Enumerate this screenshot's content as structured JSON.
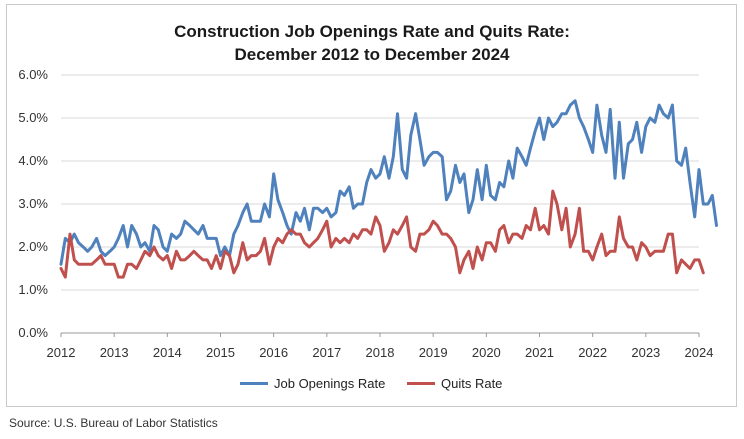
{
  "chart_data": {
    "type": "line",
    "title": "Construction Job Openings Rate and Quits Rate:",
    "subtitle": "December 2012 to December 2024",
    "x_tick_labels": [
      "2012",
      "2013",
      "2014",
      "2015",
      "2016",
      "2017",
      "2018",
      "2019",
      "2020",
      "2021",
      "2022",
      "2023",
      "2024"
    ],
    "x_range": [
      2012,
      2024
    ],
    "y_tick_labels": [
      "0.0%",
      "1.0%",
      "2.0%",
      "3.0%",
      "4.0%",
      "5.0%",
      "6.0%"
    ],
    "ylim": [
      0,
      6
    ],
    "grid": "horizontal",
    "legend_position": "bottom",
    "series": [
      {
        "name": "Job Openings Rate",
        "color": "#4f81bd",
        "points": [
          [
            2012.0,
            1.6
          ],
          [
            2012.08,
            2.2
          ],
          [
            2012.17,
            2.1
          ],
          [
            2012.25,
            2.3
          ],
          [
            2012.33,
            2.1
          ],
          [
            2012.42,
            2.0
          ],
          [
            2012.5,
            1.9
          ],
          [
            2012.58,
            2.0
          ],
          [
            2012.67,
            2.2
          ],
          [
            2012.75,
            1.9
          ],
          [
            2012.83,
            1.8
          ],
          [
            2012.92,
            1.9
          ],
          [
            2013.0,
            2.0
          ],
          [
            2013.08,
            2.2
          ],
          [
            2013.17,
            2.5
          ],
          [
            2013.25,
            2.0
          ],
          [
            2013.33,
            2.5
          ],
          [
            2013.42,
            2.3
          ],
          [
            2013.5,
            2.0
          ],
          [
            2013.58,
            2.1
          ],
          [
            2013.67,
            1.9
          ],
          [
            2013.75,
            2.5
          ],
          [
            2013.83,
            2.4
          ],
          [
            2013.92,
            2.0
          ],
          [
            2014.0,
            1.9
          ],
          [
            2014.08,
            2.3
          ],
          [
            2014.17,
            2.2
          ],
          [
            2014.25,
            2.3
          ],
          [
            2014.33,
            2.6
          ],
          [
            2014.42,
            2.5
          ],
          [
            2014.5,
            2.4
          ],
          [
            2014.58,
            2.3
          ],
          [
            2014.67,
            2.5
          ],
          [
            2014.75,
            2.2
          ],
          [
            2014.83,
            2.2
          ],
          [
            2014.92,
            2.2
          ],
          [
            2015.0,
            1.8
          ],
          [
            2015.08,
            2.0
          ],
          [
            2015.17,
            1.8
          ],
          [
            2015.25,
            2.3
          ],
          [
            2015.33,
            2.5
          ],
          [
            2015.42,
            2.8
          ],
          [
            2015.5,
            3.0
          ],
          [
            2015.58,
            2.6
          ],
          [
            2015.67,
            2.6
          ],
          [
            2015.75,
            2.6
          ],
          [
            2015.83,
            3.0
          ],
          [
            2015.92,
            2.7
          ],
          [
            2016.0,
            3.7
          ],
          [
            2016.08,
            3.1
          ],
          [
            2016.17,
            2.8
          ],
          [
            2016.25,
            2.5
          ],
          [
            2016.33,
            2.3
          ],
          [
            2016.42,
            2.8
          ],
          [
            2016.5,
            2.6
          ],
          [
            2016.58,
            2.9
          ],
          [
            2016.67,
            2.4
          ],
          [
            2016.75,
            2.9
          ],
          [
            2016.83,
            2.9
          ],
          [
            2016.92,
            2.8
          ],
          [
            2017.0,
            2.9
          ],
          [
            2017.08,
            2.7
          ],
          [
            2017.17,
            2.8
          ],
          [
            2017.25,
            3.3
          ],
          [
            2017.33,
            3.2
          ],
          [
            2017.42,
            3.4
          ],
          [
            2017.5,
            2.9
          ],
          [
            2017.58,
            3.0
          ],
          [
            2017.67,
            3.0
          ],
          [
            2017.75,
            3.5
          ],
          [
            2017.83,
            3.8
          ],
          [
            2017.92,
            3.6
          ],
          [
            2018.0,
            3.7
          ],
          [
            2018.08,
            4.1
          ],
          [
            2018.17,
            3.6
          ],
          [
            2018.25,
            4.1
          ],
          [
            2018.33,
            5.1
          ],
          [
            2018.42,
            3.8
          ],
          [
            2018.5,
            3.6
          ],
          [
            2018.58,
            4.6
          ],
          [
            2018.67,
            5.1
          ],
          [
            2018.75,
            4.5
          ],
          [
            2018.83,
            3.9
          ],
          [
            2018.92,
            4.1
          ],
          [
            2019.0,
            4.2
          ],
          [
            2019.08,
            4.2
          ],
          [
            2019.17,
            4.1
          ],
          [
            2019.25,
            3.1
          ],
          [
            2019.33,
            3.3
          ],
          [
            2019.42,
            3.9
          ],
          [
            2019.5,
            3.5
          ],
          [
            2019.58,
            3.7
          ],
          [
            2019.67,
            2.8
          ],
          [
            2019.75,
            3.1
          ],
          [
            2019.83,
            3.8
          ],
          [
            2019.92,
            3.1
          ],
          [
            2020.0,
            3.9
          ],
          [
            2020.08,
            3.2
          ],
          [
            2020.17,
            3.1
          ],
          [
            2020.25,
            3.5
          ],
          [
            2020.33,
            3.4
          ],
          [
            2020.42,
            4.0
          ],
          [
            2020.5,
            3.6
          ],
          [
            2020.58,
            4.3
          ],
          [
            2020.67,
            4.1
          ],
          [
            2020.75,
            3.9
          ],
          [
            2020.83,
            4.3
          ],
          [
            2020.92,
            4.7
          ],
          [
            2021.0,
            5.0
          ],
          [
            2021.08,
            4.5
          ],
          [
            2021.17,
            5.0
          ],
          [
            2021.25,
            4.8
          ],
          [
            2021.33,
            4.9
          ],
          [
            2021.42,
            5.1
          ],
          [
            2021.5,
            5.1
          ],
          [
            2021.58,
            5.3
          ],
          [
            2021.67,
            5.4
          ],
          [
            2021.75,
            5.0
          ],
          [
            2021.83,
            4.8
          ],
          [
            2021.92,
            4.5
          ],
          [
            2022.0,
            4.2
          ],
          [
            2022.08,
            5.3
          ],
          [
            2022.17,
            4.6
          ],
          [
            2022.25,
            4.2
          ],
          [
            2022.33,
            5.2
          ],
          [
            2022.42,
            3.6
          ],
          [
            2022.5,
            4.9
          ],
          [
            2022.58,
            3.6
          ],
          [
            2022.67,
            4.4
          ],
          [
            2022.75,
            4.5
          ],
          [
            2022.83,
            4.9
          ],
          [
            2022.92,
            4.2
          ],
          [
            2023.0,
            4.8
          ],
          [
            2023.08,
            5.0
          ],
          [
            2023.17,
            4.9
          ],
          [
            2023.25,
            5.3
          ],
          [
            2023.33,
            5.1
          ],
          [
            2023.42,
            5.0
          ],
          [
            2023.5,
            5.3
          ],
          [
            2023.58,
            4.0
          ],
          [
            2023.67,
            3.9
          ],
          [
            2023.75,
            4.3
          ],
          [
            2023.83,
            3.5
          ],
          [
            2023.92,
            2.7
          ],
          [
            2024.0,
            3.8
          ],
          [
            2024.08,
            3.0
          ],
          [
            2024.17,
            3.0
          ],
          [
            2024.25,
            3.2
          ],
          [
            2024.33,
            2.5
          ]
        ]
      },
      {
        "name": "Quits Rate",
        "color": "#c0504d",
        "points": [
          [
            2012.0,
            1.5
          ],
          [
            2012.08,
            1.3
          ],
          [
            2012.17,
            2.3
          ],
          [
            2012.25,
            1.7
          ],
          [
            2012.33,
            1.6
          ],
          [
            2012.42,
            1.6
          ],
          [
            2012.5,
            1.6
          ],
          [
            2012.58,
            1.6
          ],
          [
            2012.67,
            1.7
          ],
          [
            2012.75,
            1.8
          ],
          [
            2012.83,
            1.6
          ],
          [
            2012.92,
            1.6
          ],
          [
            2013.0,
            1.6
          ],
          [
            2013.08,
            1.3
          ],
          [
            2013.17,
            1.3
          ],
          [
            2013.25,
            1.6
          ],
          [
            2013.33,
            1.6
          ],
          [
            2013.42,
            1.5
          ],
          [
            2013.5,
            1.7
          ],
          [
            2013.58,
            1.9
          ],
          [
            2013.67,
            1.8
          ],
          [
            2013.75,
            2.0
          ],
          [
            2013.83,
            1.8
          ],
          [
            2013.92,
            1.7
          ],
          [
            2014.0,
            1.8
          ],
          [
            2014.08,
            1.5
          ],
          [
            2014.17,
            1.9
          ],
          [
            2014.25,
            1.7
          ],
          [
            2014.33,
            1.7
          ],
          [
            2014.42,
            1.8
          ],
          [
            2014.5,
            1.9
          ],
          [
            2014.58,
            1.8
          ],
          [
            2014.67,
            1.7
          ],
          [
            2014.75,
            1.7
          ],
          [
            2014.83,
            1.5
          ],
          [
            2014.92,
            1.8
          ],
          [
            2015.0,
            1.5
          ],
          [
            2015.08,
            1.9
          ],
          [
            2015.17,
            1.8
          ],
          [
            2015.25,
            1.4
          ],
          [
            2015.33,
            1.6
          ],
          [
            2015.42,
            2.1
          ],
          [
            2015.5,
            1.7
          ],
          [
            2015.58,
            1.8
          ],
          [
            2015.67,
            1.8
          ],
          [
            2015.75,
            1.9
          ],
          [
            2015.83,
            2.2
          ],
          [
            2015.92,
            1.6
          ],
          [
            2016.0,
            2.0
          ],
          [
            2016.08,
            2.2
          ],
          [
            2016.17,
            2.1
          ],
          [
            2016.25,
            2.3
          ],
          [
            2016.33,
            2.4
          ],
          [
            2016.42,
            2.3
          ],
          [
            2016.5,
            2.3
          ],
          [
            2016.58,
            2.1
          ],
          [
            2016.67,
            2.0
          ],
          [
            2016.75,
            2.1
          ],
          [
            2016.83,
            2.2
          ],
          [
            2016.92,
            2.4
          ],
          [
            2017.0,
            2.6
          ],
          [
            2017.08,
            2.0
          ],
          [
            2017.17,
            2.2
          ],
          [
            2017.25,
            2.1
          ],
          [
            2017.33,
            2.2
          ],
          [
            2017.42,
            2.1
          ],
          [
            2017.5,
            2.3
          ],
          [
            2017.58,
            2.2
          ],
          [
            2017.67,
            2.4
          ],
          [
            2017.75,
            2.4
          ],
          [
            2017.83,
            2.3
          ],
          [
            2017.92,
            2.7
          ],
          [
            2018.0,
            2.5
          ],
          [
            2018.08,
            1.9
          ],
          [
            2018.17,
            2.1
          ],
          [
            2018.25,
            2.4
          ],
          [
            2018.33,
            2.3
          ],
          [
            2018.42,
            2.5
          ],
          [
            2018.5,
            2.7
          ],
          [
            2018.58,
            2.0
          ],
          [
            2018.67,
            1.9
          ],
          [
            2018.75,
            2.3
          ],
          [
            2018.83,
            2.3
          ],
          [
            2018.92,
            2.4
          ],
          [
            2019.0,
            2.6
          ],
          [
            2019.08,
            2.5
          ],
          [
            2019.17,
            2.3
          ],
          [
            2019.25,
            2.3
          ],
          [
            2019.33,
            2.2
          ],
          [
            2019.42,
            2.0
          ],
          [
            2019.5,
            1.4
          ],
          [
            2019.58,
            1.7
          ],
          [
            2019.67,
            1.9
          ],
          [
            2019.75,
            1.5
          ],
          [
            2019.83,
            2.0
          ],
          [
            2019.92,
            1.7
          ],
          [
            2020.0,
            2.1
          ],
          [
            2020.08,
            2.1
          ],
          [
            2020.17,
            1.9
          ],
          [
            2020.25,
            2.4
          ],
          [
            2020.33,
            2.5
          ],
          [
            2020.42,
            2.1
          ],
          [
            2020.5,
            2.3
          ],
          [
            2020.58,
            2.3
          ],
          [
            2020.67,
            2.2
          ],
          [
            2020.75,
            2.5
          ],
          [
            2020.83,
            2.4
          ],
          [
            2020.92,
            2.9
          ],
          [
            2021.0,
            2.4
          ],
          [
            2021.08,
            2.5
          ],
          [
            2021.17,
            2.3
          ],
          [
            2021.25,
            3.3
          ],
          [
            2021.33,
            3.0
          ],
          [
            2021.42,
            2.4
          ],
          [
            2021.5,
            2.9
          ],
          [
            2021.58,
            2.0
          ],
          [
            2021.67,
            2.3
          ],
          [
            2021.75,
            2.9
          ],
          [
            2021.83,
            1.9
          ],
          [
            2021.92,
            1.9
          ],
          [
            2022.0,
            1.7
          ],
          [
            2022.08,
            2.0
          ],
          [
            2022.17,
            2.3
          ],
          [
            2022.25,
            1.8
          ],
          [
            2022.33,
            1.9
          ],
          [
            2022.42,
            1.9
          ],
          [
            2022.5,
            2.7
          ],
          [
            2022.58,
            2.2
          ],
          [
            2022.67,
            2.0
          ],
          [
            2022.75,
            2.0
          ],
          [
            2022.83,
            1.7
          ],
          [
            2022.92,
            2.1
          ],
          [
            2023.0,
            2.0
          ],
          [
            2023.08,
            1.8
          ],
          [
            2023.17,
            1.9
          ],
          [
            2023.25,
            1.9
          ],
          [
            2023.33,
            1.9
          ],
          [
            2023.42,
            2.3
          ],
          [
            2023.5,
            2.3
          ],
          [
            2023.58,
            1.4
          ],
          [
            2023.67,
            1.7
          ],
          [
            2023.75,
            1.6
          ],
          [
            2023.83,
            1.5
          ],
          [
            2023.92,
            1.7
          ],
          [
            2024.0,
            1.7
          ],
          [
            2024.08,
            1.4
          ]
        ]
      }
    ]
  },
  "source": "Source: U.S. Bureau of Labor Statistics"
}
